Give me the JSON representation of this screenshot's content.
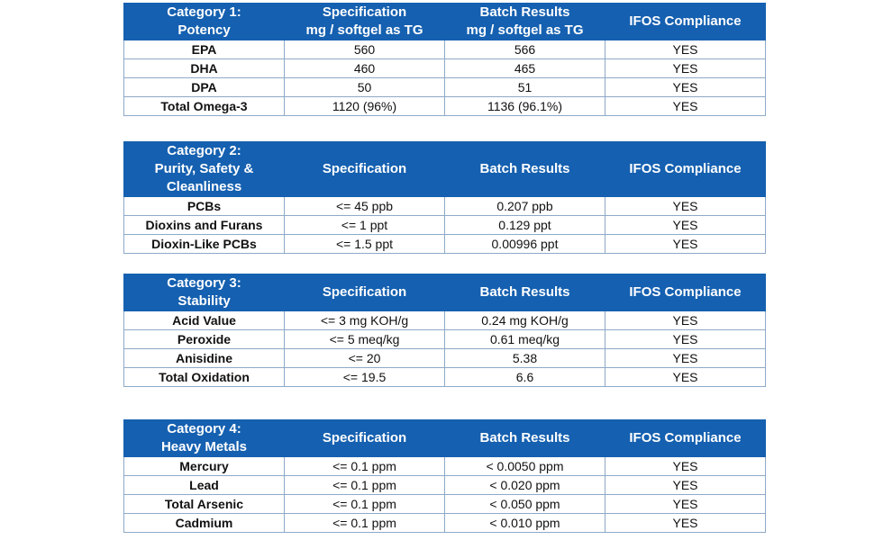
{
  "tables": [
    {
      "header": [
        "Category 1:\nPotency",
        "Specification\nmg / softgel as TG",
        "Batch Results\nmg / softgel as TG",
        "IFOS Compliance"
      ],
      "rows": [
        [
          "EPA",
          "560",
          "566",
          "YES"
        ],
        [
          "DHA",
          "460",
          "465",
          "YES"
        ],
        [
          "DPA",
          "50",
          "51",
          "YES"
        ],
        [
          "Total Omega-3",
          "1120 (96%)",
          "1136 (96.1%)",
          "YES"
        ]
      ]
    },
    {
      "header": [
        "Category 2:\nPurity, Safety &\nCleanliness",
        "Specification",
        "Batch Results",
        "IFOS Compliance"
      ],
      "rows": [
        [
          "PCBs",
          "<= 45 ppb",
          "0.207 ppb",
          "YES"
        ],
        [
          "Dioxins and Furans",
          "<= 1 ppt",
          "0.129 ppt",
          "YES"
        ],
        [
          "Dioxin-Like PCBs",
          "<= 1.5 ppt",
          "0.00996 ppt",
          "YES"
        ]
      ]
    },
    {
      "header": [
        "Category 3:\nStability",
        "Specification",
        "Batch Results",
        "IFOS Compliance"
      ],
      "rows": [
        [
          "Acid Value",
          "<= 3 mg KOH/g",
          "0.24 mg KOH/g",
          "YES"
        ],
        [
          "Peroxide",
          "<= 5 meq/kg",
          "0.61 meq/kg",
          "YES"
        ],
        [
          "Anisidine",
          "<= 20",
          "5.38",
          "YES"
        ],
        [
          "Total Oxidation",
          "<= 19.5",
          "6.6",
          "YES"
        ]
      ]
    },
    {
      "header": [
        "Category 4:\nHeavy Metals",
        "Specification",
        "Batch Results",
        "IFOS Compliance"
      ],
      "rows": [
        [
          "Mercury",
          "<= 0.1 ppm",
          "< 0.0050 ppm",
          "YES"
        ],
        [
          "Lead",
          "<= 0.1 ppm",
          "< 0.020 ppm",
          "YES"
        ],
        [
          "Total Arsenic",
          "<= 0.1 ppm",
          "< 0.050 ppm",
          "YES"
        ],
        [
          "Cadmium",
          "<= 0.1 ppm",
          "< 0.010 ppm",
          "YES"
        ]
      ]
    }
  ]
}
